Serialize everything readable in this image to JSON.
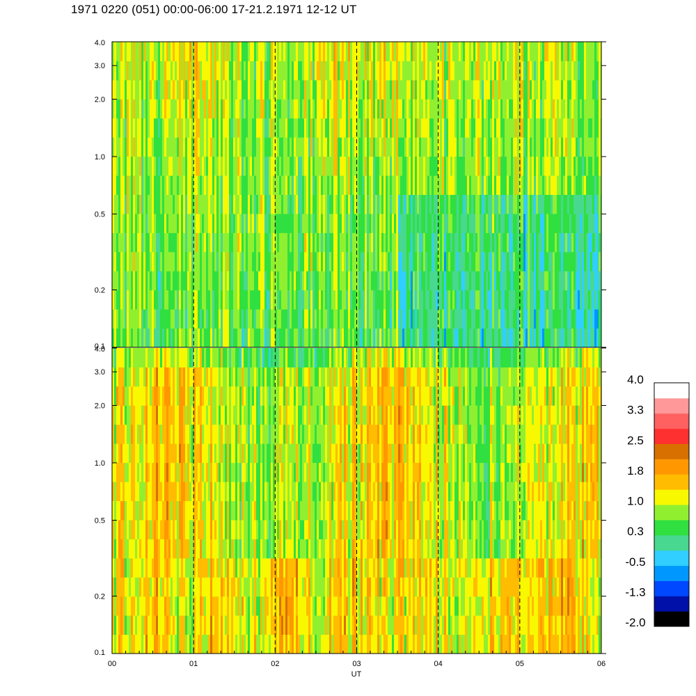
{
  "header": {
    "title": "1971 0220 (051) 00:00-06:00 17-21.2.1971 12-12 UT"
  },
  "chart_data": {
    "type": "heatmap",
    "title": "1971 0220 (051) 00:00-06:00 17-21.2.1971 12-12 UT",
    "xlabel": "UT",
    "x_tick_labels": [
      "00",
      "01",
      "02",
      "03",
      "04",
      "05",
      "06"
    ],
    "x_range": [
      0,
      6
    ],
    "dashed_hour_lines": [
      1,
      2,
      3,
      4,
      5
    ],
    "panels": [
      {
        "position": "top",
        "y_scale": "log",
        "y_range": [
          0.1,
          4.0
        ],
        "y_ticks": [
          0.1,
          0.2,
          0.5,
          1.0,
          2.0,
          3.0,
          4.0
        ],
        "y_tick_labels": [
          "0.1",
          "0.2",
          "0.5",
          "1.0",
          "2.0",
          "3.0",
          "4.0"
        ],
        "description_levels": "mostly 0.3 to 1.0, warmer bands near 01 and 02:30-03:30 above 1.0 Hz"
      },
      {
        "position": "bottom",
        "y_scale": "log",
        "y_range": [
          0.1,
          4.0
        ],
        "y_ticks": [
          0.1,
          0.2,
          0.5,
          1.0,
          2.0,
          3.0,
          4.0
        ],
        "y_tick_labels": [
          "0.1",
          "0.2",
          "0.5",
          "1.0",
          "2.0",
          "3.0",
          "4.0"
        ],
        "description_levels": "mostly 1.0 to 2.2 with orange peaks"
      }
    ],
    "colorbar": {
      "tick_labels": [
        "4.0",
        "3.3",
        "2.5",
        "1.8",
        "1.0",
        "0.3",
        "-0.5",
        "-1.3",
        "-2.0"
      ],
      "range": [
        -2.0,
        4.0
      ],
      "colors": [
        "#000000",
        "#0010a8",
        "#0048ff",
        "#0098ff",
        "#30cfff",
        "#48d890",
        "#30e040",
        "#90f030",
        "#f8f800",
        "#ffbc00",
        "#ff9800",
        "#d87000",
        "#ff3030",
        "#ff6060",
        "#ff9898",
        "#ffffff"
      ]
    }
  }
}
